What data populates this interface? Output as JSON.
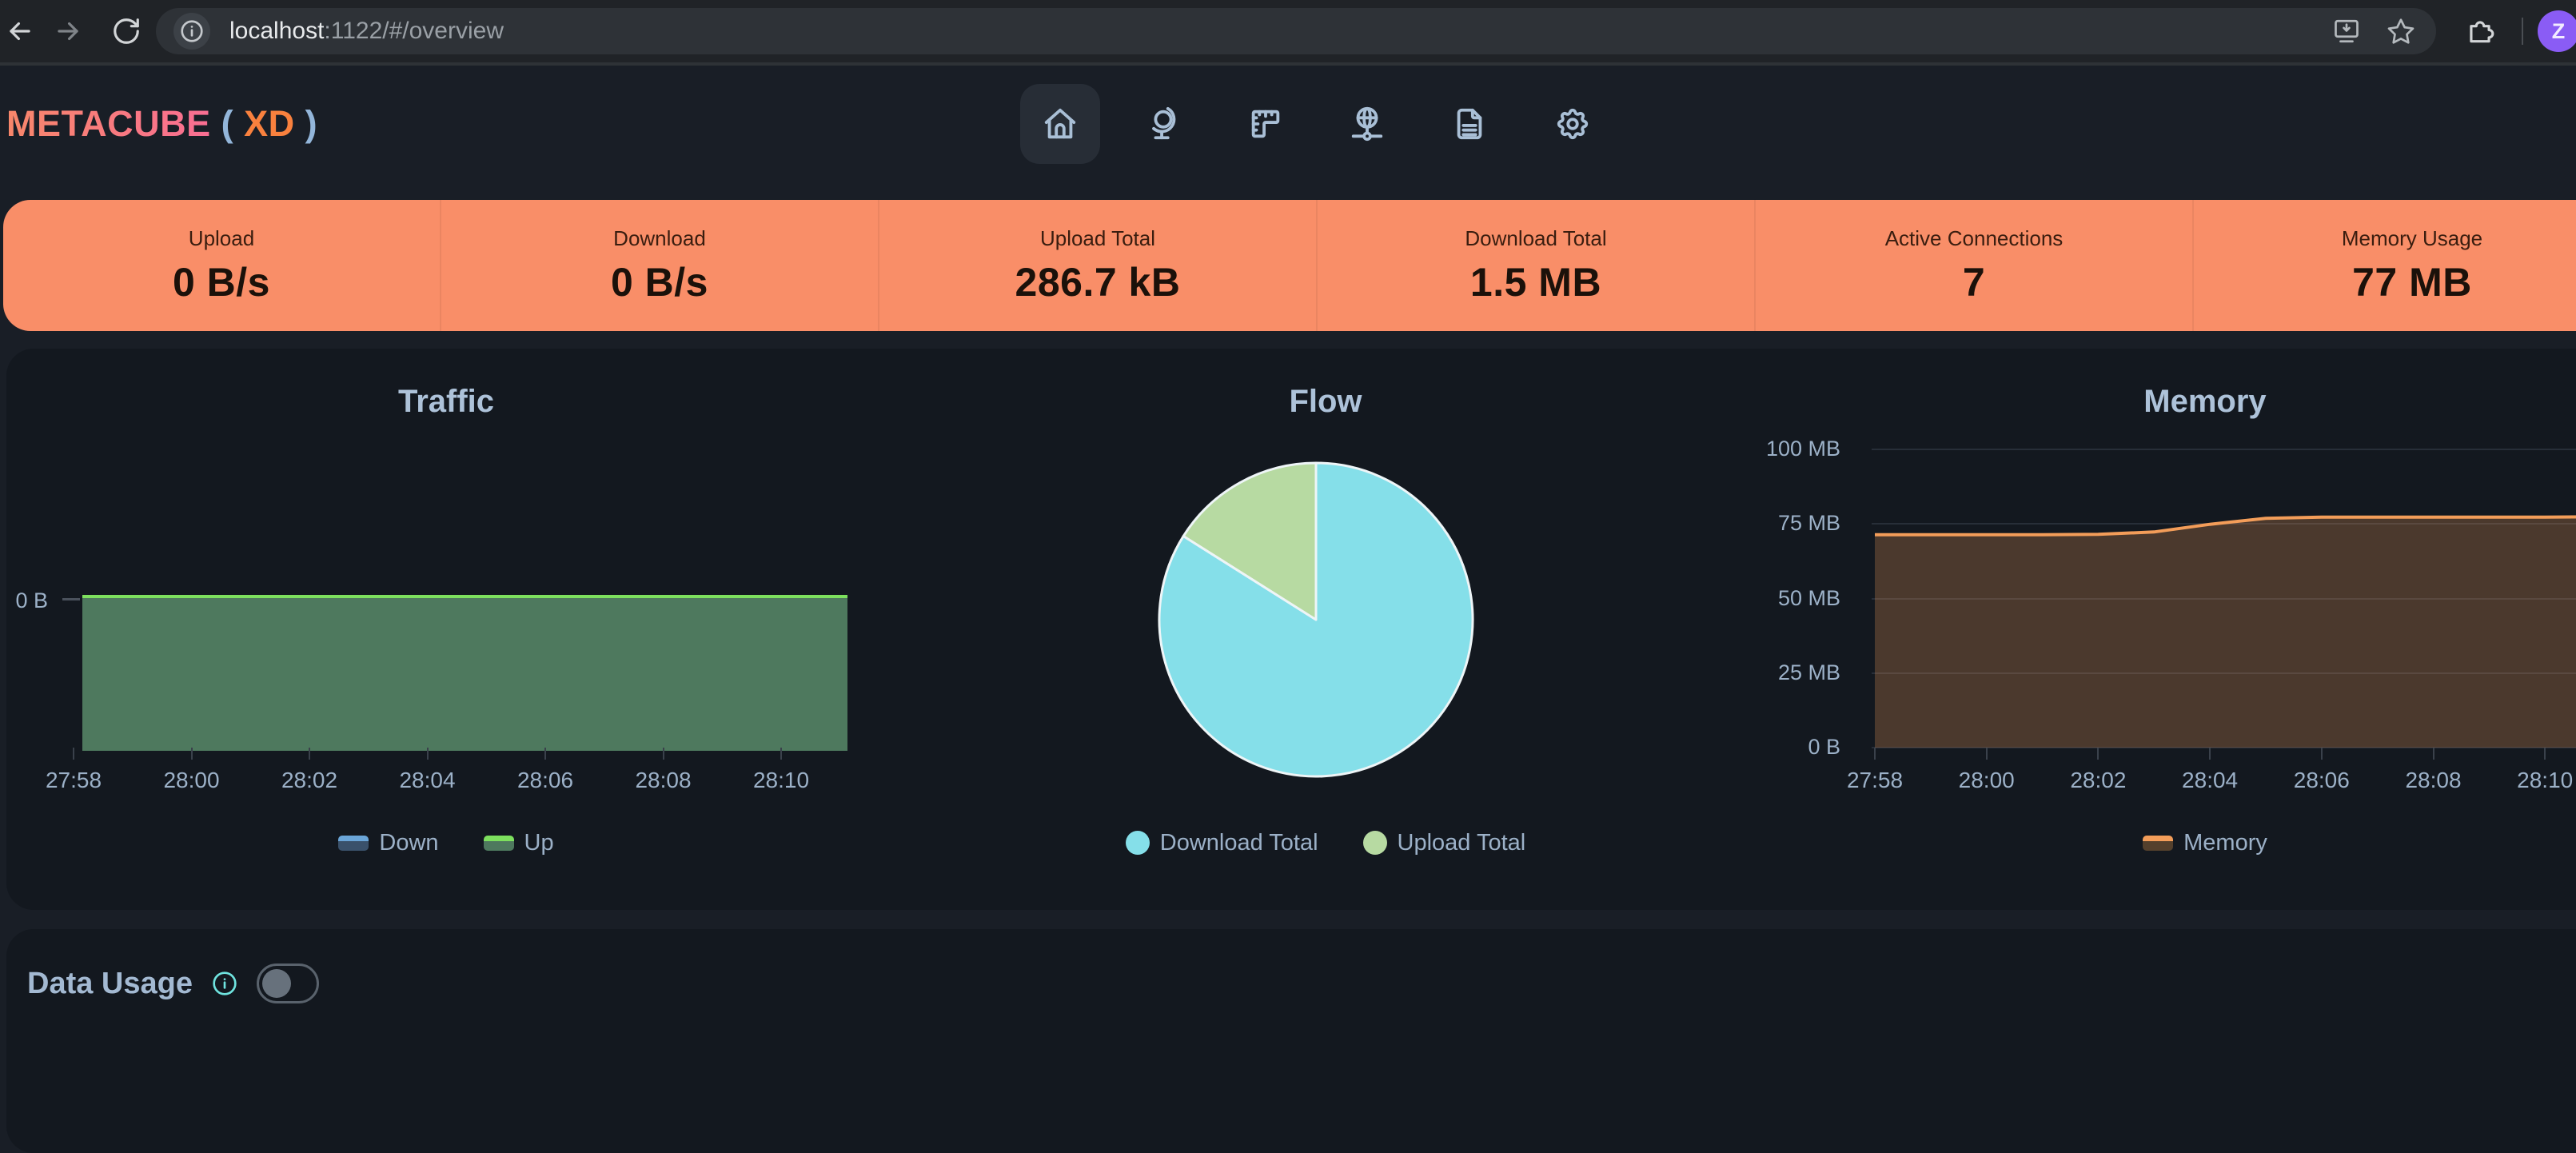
{
  "browser": {
    "url": {
      "host": "localhost",
      "rest": ":1122/#/overview"
    },
    "profile_initial": "Z"
  },
  "header": {
    "brand": {
      "name": "METACUBE",
      "paren_open": " ( ",
      "variant": "XD",
      "paren_close": " )"
    },
    "nav": [
      {
        "name": "overview",
        "icon": "home-icon",
        "active": true
      },
      {
        "name": "proxies",
        "icon": "globe-stand-icon",
        "active": false
      },
      {
        "name": "rules",
        "icon": "ruler-icon",
        "active": false
      },
      {
        "name": "connections",
        "icon": "network-globe-icon",
        "active": false
      },
      {
        "name": "logs",
        "icon": "file-text-icon",
        "active": false
      },
      {
        "name": "config",
        "icon": "gear-icon",
        "active": false
      }
    ]
  },
  "stats": [
    {
      "label": "Upload",
      "value": "0 B/s"
    },
    {
      "label": "Download",
      "value": "0 B/s"
    },
    {
      "label": "Upload Total",
      "value": "286.7 kB"
    },
    {
      "label": "Download Total",
      "value": "1.5 MB"
    },
    {
      "label": "Active Connections",
      "value": "7"
    },
    {
      "label": "Memory Usage",
      "value": "77 MB"
    }
  ],
  "data_usage": {
    "label": "Data Usage",
    "toggle_on": false
  },
  "colors": {
    "accent": "#f98e68",
    "page_bg": "#191e26",
    "card_bg": "#13181f",
    "down_line": "#6aa5d8",
    "down_fill": "#3a516b",
    "up_line": "#7de05e",
    "up_fill": "#4e795e",
    "memory_line": "#f39d59",
    "memory_fill": "rgba(243,157,89,0.25)",
    "memory_legend_fill": "#54402c",
    "pie_download": "#85dfe9",
    "pie_upload": "#b7daa2",
    "pie_stroke": "#eef5f7",
    "avatar_bg": "#8a5cf5",
    "info_icon": "#6fe3df"
  },
  "chart_data": [
    {
      "type": "area",
      "title": "Traffic",
      "x_start": "27:58",
      "x_interval_min": 1,
      "x_ticks": [
        "27:58",
        "28:00",
        "28:02",
        "28:04",
        "28:06",
        "28:08",
        "28:10"
      ],
      "y_ticks": [
        "0 B"
      ],
      "legend_position": "bottom",
      "series": [
        {
          "name": "Down",
          "values": [
            0,
            0,
            0,
            0,
            0,
            0,
            0,
            0,
            0,
            0,
            0,
            0,
            0,
            0
          ]
        },
        {
          "name": "Up",
          "values": [
            0,
            0,
            0,
            0,
            0,
            0,
            0,
            0,
            0,
            0,
            0,
            0,
            0,
            0
          ]
        }
      ]
    },
    {
      "type": "pie",
      "title": "Flow",
      "legend_position": "bottom",
      "slices": [
        {
          "label": "Download Total",
          "display_value": "1.5 MB",
          "value_mb": 1.5,
          "percent": 83.9
        },
        {
          "label": "Upload Total",
          "display_value": "286.7 kB",
          "value_mb": 0.2867,
          "percent": 16.1
        }
      ]
    },
    {
      "type": "area",
      "title": "Memory",
      "x_start": "27:58",
      "x_interval_min": 1,
      "x_ticks": [
        "27:58",
        "28:00",
        "28:02",
        "28:04",
        "28:06",
        "28:08",
        "28:10"
      ],
      "y_ticks": [
        "100 MB",
        "75 MB",
        "50 MB",
        "25 MB",
        "0 B"
      ],
      "ylim": [
        0,
        100
      ],
      "grid": true,
      "legend_position": "bottom",
      "series": [
        {
          "name": "Memory",
          "values_mb": [
            71.4,
            71.4,
            71.4,
            71.4,
            71.5,
            72.3,
            74.9,
            76.9,
            77.3,
            77.3,
            77.3,
            77.3,
            77.3,
            77.4
          ]
        }
      ]
    }
  ]
}
